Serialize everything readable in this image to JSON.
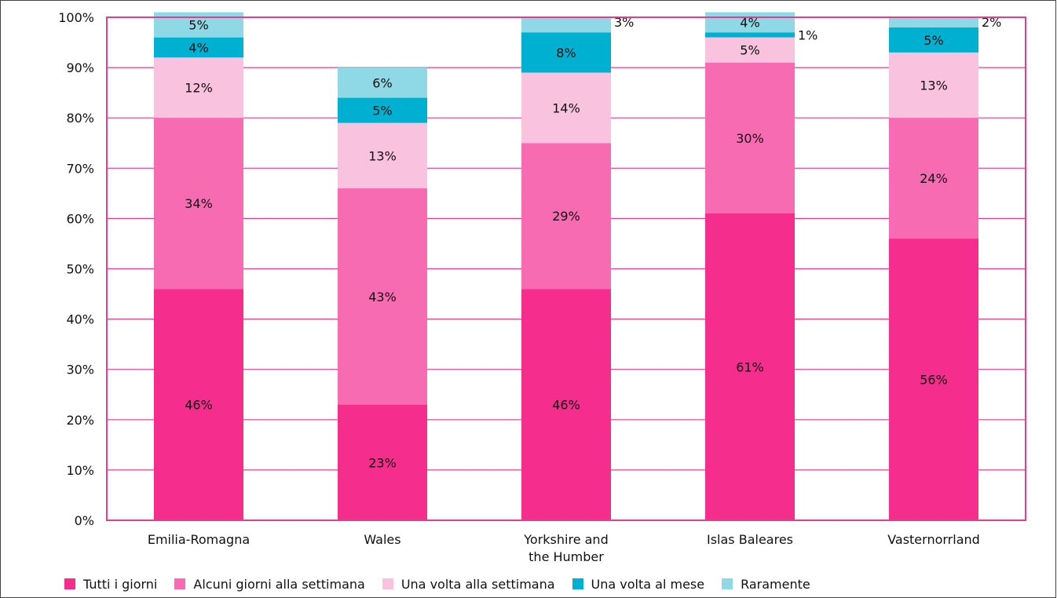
{
  "chart_data": {
    "type": "bar",
    "stacked": true,
    "categories": [
      "Emilia-Romagna",
      "Wales",
      "Yorkshire and the Humber",
      "Islas Baleares",
      "Vasternorrland"
    ],
    "category_lines": [
      [
        "Emilia-Romagna"
      ],
      [
        "Wales"
      ],
      [
        "Yorkshire and",
        "the Humber"
      ],
      [
        "Islas Baleares"
      ],
      [
        "Vasternorrland"
      ]
    ],
    "series": [
      {
        "name": "Tutti i giorni",
        "color": "#f52d8d",
        "values": [
          46,
          23,
          46,
          61,
          56
        ],
        "labels": [
          "46%",
          "23%",
          "46%",
          "61%",
          "56%"
        ]
      },
      {
        "name": "Alcuni giorni alla settimana",
        "color": "#f76bb3",
        "values": [
          34,
          43,
          29,
          30,
          24
        ],
        "labels": [
          "34%",
          "43%",
          "29%",
          "30%",
          "24%"
        ]
      },
      {
        "name": "Una volta alla settimana",
        "color": "#f9c2de",
        "values": [
          12,
          13,
          14,
          5,
          13
        ],
        "labels": [
          "12%",
          "13%",
          "14%",
          "5%",
          "13%"
        ]
      },
      {
        "name": "Una volta al mese",
        "color": "#00b0d0",
        "values": [
          4,
          5,
          8,
          1,
          5
        ],
        "labels": [
          "4%",
          "5%",
          "8%",
          "1%",
          "5%"
        ]
      },
      {
        "name": "Raramente",
        "color": "#8fd8e6",
        "values": [
          5,
          6,
          3,
          4,
          2
        ],
        "labels": [
          "5%",
          "6%",
          "3%",
          "4%",
          "2%"
        ]
      }
    ],
    "ylim": [
      0,
      100
    ],
    "yticks": [
      "0%",
      "10%",
      "20%",
      "30%",
      "40%",
      "50%",
      "60%",
      "70%",
      "80%",
      "90%",
      "100%"
    ],
    "grid": true,
    "grid_color": "#ea3c8f",
    "legend_position": "bottom"
  }
}
